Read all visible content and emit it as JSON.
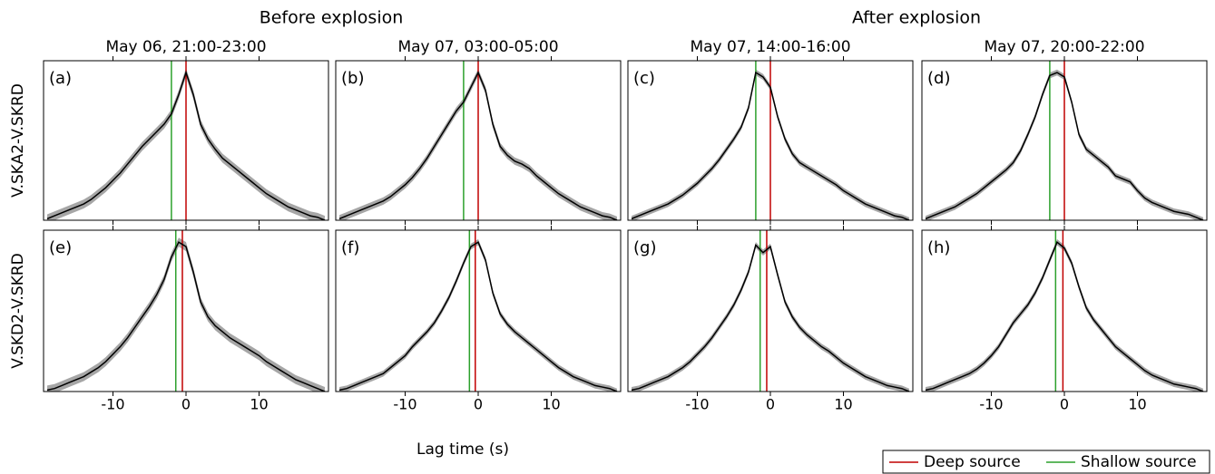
{
  "figure": {
    "group_titles": [
      "Before explosion",
      "After explosion"
    ],
    "column_titles": [
      "May 06, 21:00-23:00",
      "May 07, 03:00-05:00",
      "May 07, 14:00-16:00",
      "May 07, 20:00-22:00"
    ],
    "row_labels": [
      "V.SKA2-V.SKRD",
      "V.SKD2-V.SKRD"
    ],
    "xlabel": "Lag time (s)",
    "legend": [
      {
        "name": "Deep source",
        "color": "#c00000"
      },
      {
        "name": "Shallow source",
        "color": "#2ca02c"
      }
    ]
  },
  "chart_data": [
    {
      "type": "line",
      "panel": "(a)",
      "x": [
        -19,
        -18,
        -17,
        -16,
        -15,
        -14,
        -13,
        -12,
        -11,
        -10,
        -9,
        -8,
        -7,
        -6,
        -5,
        -4,
        -3,
        -2,
        -1,
        0,
        1,
        2,
        3,
        4,
        5,
        6,
        7,
        8,
        9,
        10,
        11,
        12,
        13,
        14,
        15,
        16,
        17,
        18,
        19
      ],
      "series": [
        {
          "color": "#000000",
          "band_color": "#a6a6a6",
          "band_halfwidth": 0.03,
          "values": [
            0.01,
            0.03,
            0.05,
            0.07,
            0.09,
            0.11,
            0.14,
            0.18,
            0.22,
            0.27,
            0.32,
            0.38,
            0.44,
            0.5,
            0.55,
            0.6,
            0.65,
            0.72,
            0.85,
            1.0,
            0.85,
            0.65,
            0.55,
            0.48,
            0.42,
            0.38,
            0.34,
            0.3,
            0.26,
            0.22,
            0.18,
            0.15,
            0.12,
            0.09,
            0.07,
            0.05,
            0.03,
            0.02,
            0.0
          ]
        }
      ],
      "xlim": [
        -19.5,
        19.5
      ],
      "ylim": [
        0,
        1.08
      ],
      "xticks": [
        -10,
        0,
        10
      ],
      "deep_source_x": 0,
      "shallow_source_x": -2
    },
    {
      "type": "line",
      "panel": "(b)",
      "x": [
        -19,
        -18,
        -17,
        -16,
        -15,
        -14,
        -13,
        -12,
        -11,
        -10,
        -9,
        -8,
        -7,
        -6,
        -5,
        -4,
        -3,
        -2,
        -1,
        0,
        1,
        2,
        3,
        4,
        5,
        6,
        7,
        8,
        9,
        10,
        11,
        12,
        13,
        14,
        15,
        16,
        17,
        18,
        19
      ],
      "series": [
        {
          "color": "#000000",
          "band_color": "#a6a6a6",
          "band_halfwidth": 0.025,
          "values": [
            0.01,
            0.03,
            0.05,
            0.07,
            0.09,
            0.11,
            0.13,
            0.16,
            0.2,
            0.24,
            0.29,
            0.35,
            0.42,
            0.5,
            0.58,
            0.66,
            0.74,
            0.8,
            0.9,
            1.0,
            0.88,
            0.65,
            0.5,
            0.44,
            0.4,
            0.38,
            0.35,
            0.3,
            0.26,
            0.22,
            0.18,
            0.15,
            0.12,
            0.09,
            0.07,
            0.05,
            0.03,
            0.02,
            0.0
          ]
        }
      ],
      "xlim": [
        -19.5,
        19.5
      ],
      "ylim": [
        0,
        1.08
      ],
      "xticks": [
        -10,
        0,
        10
      ],
      "deep_source_x": 0,
      "shallow_source_x": -2
    },
    {
      "type": "line",
      "panel": "(c)",
      "x": [
        -19,
        -18,
        -17,
        -16,
        -15,
        -14,
        -13,
        -12,
        -11,
        -10,
        -9,
        -8,
        -7,
        -6,
        -5,
        -4,
        -3,
        -2,
        -1,
        0,
        1,
        2,
        3,
        4,
        5,
        6,
        7,
        8,
        9,
        10,
        11,
        12,
        13,
        14,
        15,
        16,
        17,
        18,
        19
      ],
      "series": [
        {
          "color": "#000000",
          "band_color": "#a6a6a6",
          "band_halfwidth": 0.02,
          "values": [
            0.01,
            0.03,
            0.05,
            0.07,
            0.09,
            0.11,
            0.14,
            0.17,
            0.21,
            0.25,
            0.3,
            0.35,
            0.41,
            0.48,
            0.55,
            0.63,
            0.76,
            1.0,
            0.97,
            0.9,
            0.7,
            0.55,
            0.45,
            0.39,
            0.36,
            0.33,
            0.3,
            0.27,
            0.24,
            0.2,
            0.17,
            0.14,
            0.11,
            0.09,
            0.07,
            0.05,
            0.03,
            0.02,
            0.0
          ]
        }
      ],
      "xlim": [
        -19.5,
        19.5
      ],
      "ylim": [
        0,
        1.08
      ],
      "xticks": [
        -10,
        0,
        10
      ],
      "deep_source_x": 0,
      "shallow_source_x": -2
    },
    {
      "type": "line",
      "panel": "(d)",
      "x": [
        -19,
        -18,
        -17,
        -16,
        -15,
        -14,
        -13,
        -12,
        -11,
        -10,
        -9,
        -8,
        -7,
        -6,
        -5,
        -4,
        -3,
        -2,
        -1,
        0,
        1,
        2,
        3,
        4,
        5,
        6,
        7,
        8,
        9,
        10,
        11,
        12,
        13,
        14,
        15,
        16,
        17,
        18,
        19
      ],
      "series": [
        {
          "color": "#000000",
          "band_color": "#a6a6a6",
          "band_halfwidth": 0.02,
          "values": [
            0.01,
            0.03,
            0.05,
            0.07,
            0.09,
            0.12,
            0.15,
            0.18,
            0.22,
            0.26,
            0.3,
            0.34,
            0.39,
            0.47,
            0.58,
            0.7,
            0.85,
            0.98,
            1.0,
            0.97,
            0.8,
            0.58,
            0.48,
            0.44,
            0.4,
            0.36,
            0.3,
            0.28,
            0.26,
            0.2,
            0.15,
            0.12,
            0.1,
            0.08,
            0.06,
            0.05,
            0.04,
            0.02,
            0.0
          ]
        }
      ],
      "xlim": [
        -19.5,
        19.5
      ],
      "ylim": [
        0,
        1.08
      ],
      "xticks": [
        -10,
        0,
        10
      ],
      "deep_source_x": 0,
      "shallow_source_x": -2
    },
    {
      "type": "line",
      "panel": "(e)",
      "x": [
        -19,
        -18,
        -17,
        -16,
        -15,
        -14,
        -13,
        -12,
        -11,
        -10,
        -9,
        -8,
        -7,
        -6,
        -5,
        -4,
        -3,
        -2,
        -1,
        0,
        1,
        2,
        3,
        4,
        5,
        6,
        7,
        8,
        9,
        10,
        11,
        12,
        13,
        14,
        15,
        16,
        17,
        18,
        19
      ],
      "series": [
        {
          "color": "#000000",
          "band_color": "#a6a6a6",
          "band_halfwidth": 0.03,
          "values": [
            0.01,
            0.02,
            0.04,
            0.06,
            0.08,
            0.1,
            0.13,
            0.16,
            0.2,
            0.25,
            0.3,
            0.36,
            0.43,
            0.5,
            0.57,
            0.65,
            0.75,
            0.9,
            1.0,
            0.97,
            0.8,
            0.6,
            0.5,
            0.44,
            0.4,
            0.36,
            0.33,
            0.3,
            0.27,
            0.24,
            0.2,
            0.17,
            0.14,
            0.11,
            0.08,
            0.06,
            0.04,
            0.02,
            0.0
          ]
        }
      ],
      "xlim": [
        -19.5,
        19.5
      ],
      "ylim": [
        0,
        1.08
      ],
      "xticks": [
        -10,
        0,
        10
      ],
      "deep_source_x": -0.5,
      "shallow_source_x": -1.4
    },
    {
      "type": "line",
      "panel": "(f)",
      "x": [
        -19,
        -18,
        -17,
        -16,
        -15,
        -14,
        -13,
        -12,
        -11,
        -10,
        -9,
        -8,
        -7,
        -6,
        -5,
        -4,
        -3,
        -2,
        -1,
        0,
        1,
        2,
        3,
        4,
        5,
        6,
        7,
        8,
        9,
        10,
        11,
        12,
        13,
        14,
        15,
        16,
        17,
        18,
        19
      ],
      "series": [
        {
          "color": "#000000",
          "band_color": "#a6a6a6",
          "band_halfwidth": 0.02,
          "values": [
            0.01,
            0.02,
            0.04,
            0.06,
            0.08,
            0.1,
            0.12,
            0.16,
            0.2,
            0.24,
            0.3,
            0.35,
            0.4,
            0.46,
            0.54,
            0.63,
            0.74,
            0.86,
            0.97,
            1.0,
            0.88,
            0.66,
            0.52,
            0.45,
            0.4,
            0.36,
            0.32,
            0.28,
            0.24,
            0.2,
            0.16,
            0.13,
            0.1,
            0.08,
            0.06,
            0.04,
            0.03,
            0.02,
            0.0
          ]
        }
      ],
      "xlim": [
        -19.5,
        19.5
      ],
      "ylim": [
        0,
        1.08
      ],
      "xticks": [
        -10,
        0,
        10
      ],
      "deep_source_x": -0.4,
      "shallow_source_x": -1.2
    },
    {
      "type": "line",
      "panel": "(g)",
      "x": [
        -19,
        -18,
        -17,
        -16,
        -15,
        -14,
        -13,
        -12,
        -11,
        -10,
        -9,
        -8,
        -7,
        -6,
        -5,
        -4,
        -3,
        -2,
        -1,
        0,
        1,
        2,
        3,
        4,
        5,
        6,
        7,
        8,
        9,
        10,
        11,
        12,
        13,
        14,
        15,
        16,
        17,
        18,
        19
      ],
      "series": [
        {
          "color": "#000000",
          "band_color": "#a6a6a6",
          "band_halfwidth": 0.02,
          "values": [
            0.01,
            0.02,
            0.04,
            0.06,
            0.08,
            0.1,
            0.13,
            0.16,
            0.2,
            0.25,
            0.3,
            0.36,
            0.43,
            0.5,
            0.58,
            0.68,
            0.8,
            0.98,
            0.93,
            0.97,
            0.78,
            0.6,
            0.5,
            0.43,
            0.38,
            0.34,
            0.3,
            0.27,
            0.23,
            0.19,
            0.16,
            0.13,
            0.1,
            0.08,
            0.06,
            0.04,
            0.03,
            0.02,
            0.0
          ]
        }
      ],
      "xlim": [
        -19.5,
        19.5
      ],
      "ylim": [
        0,
        1.08
      ],
      "xticks": [
        -10,
        0,
        10
      ],
      "deep_source_x": -0.5,
      "shallow_source_x": -1.4
    },
    {
      "type": "line",
      "panel": "(h)",
      "x": [
        -19,
        -18,
        -17,
        -16,
        -15,
        -14,
        -13,
        -12,
        -11,
        -10,
        -9,
        -8,
        -7,
        -6,
        -5,
        -4,
        -3,
        -2,
        -1,
        0,
        1,
        2,
        3,
        4,
        5,
        6,
        7,
        8,
        9,
        10,
        11,
        12,
        13,
        14,
        15,
        16,
        17,
        18,
        19
      ],
      "series": [
        {
          "color": "#000000",
          "band_color": "#a6a6a6",
          "band_halfwidth": 0.02,
          "values": [
            0.01,
            0.02,
            0.04,
            0.06,
            0.08,
            0.1,
            0.12,
            0.15,
            0.19,
            0.24,
            0.3,
            0.38,
            0.46,
            0.52,
            0.58,
            0.66,
            0.76,
            0.88,
            1.0,
            0.96,
            0.86,
            0.7,
            0.56,
            0.48,
            0.42,
            0.36,
            0.3,
            0.26,
            0.22,
            0.18,
            0.14,
            0.11,
            0.09,
            0.07,
            0.05,
            0.04,
            0.03,
            0.02,
            0.0
          ]
        }
      ],
      "xlim": [
        -19.5,
        19.5
      ],
      "ylim": [
        0,
        1.08
      ],
      "xticks": [
        -10,
        0,
        10
      ],
      "deep_source_x": -0.2,
      "shallow_source_x": -1.2
    }
  ]
}
